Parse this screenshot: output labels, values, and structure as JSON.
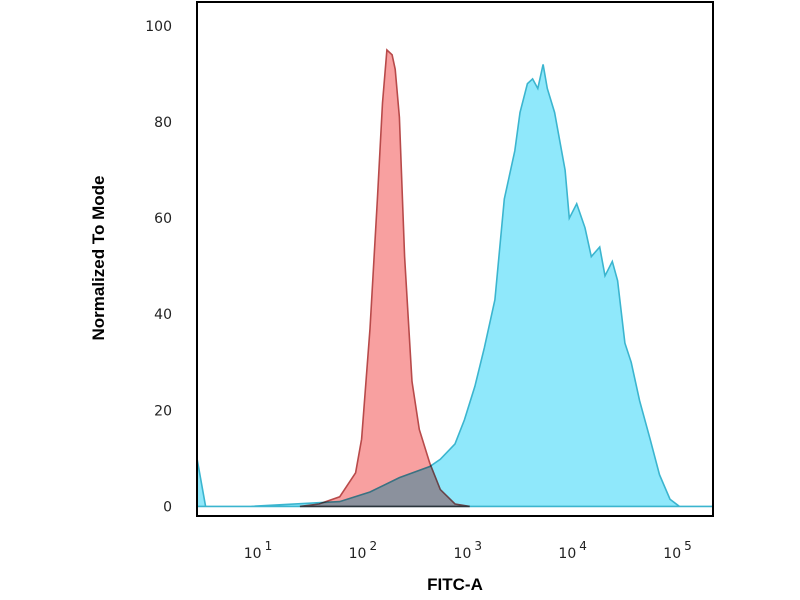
{
  "chart_data": {
    "type": "area",
    "title": "",
    "xlabel": "FITC-A",
    "ylabel": "Normalized To Mode",
    "xscale": "log",
    "xlim": [
      2.4,
      199526
    ],
    "ylim": [
      -2,
      105
    ],
    "grid": false,
    "xticks": [
      {
        "value": 10,
        "base": "10",
        "exp": "1"
      },
      {
        "value": 100,
        "base": "10",
        "exp": "2"
      },
      {
        "value": 1000,
        "base": "10",
        "exp": "3"
      },
      {
        "value": 10000,
        "base": "10",
        "exp": "4"
      },
      {
        "value": 100000,
        "base": "10",
        "exp": "5"
      }
    ],
    "yticks": [
      {
        "value": 0,
        "label": "0"
      },
      {
        "value": 20,
        "label": "20"
      },
      {
        "value": 40,
        "label": "40"
      },
      {
        "value": 60,
        "label": "60"
      },
      {
        "value": 80,
        "label": "80"
      },
      {
        "value": 100,
        "label": "100"
      }
    ],
    "series": [
      {
        "color_fill": "#8fe8fb",
        "color_line": "#3bb5cf",
        "x": [
          2.4,
          2.9,
          7.8,
          55,
          107,
          204,
          398,
          501,
          692,
          851,
          1072,
          1318,
          1660,
          2042,
          2570,
          2884,
          3388,
          3802,
          4266,
          4786,
          5248,
          6166,
          7762,
          8511,
          10000,
          12023,
          13804,
          16596,
          18621,
          21878,
          24547,
          28840,
          33113,
          39811,
          50119,
          61660,
          77625,
          95499,
          199526
        ],
        "y": [
          10,
          0,
          0,
          1,
          3,
          6,
          8.3,
          9.8,
          13,
          18,
          25,
          33,
          43,
          64,
          74,
          82,
          88,
          89,
          87,
          92,
          87,
          82,
          70,
          60,
          63,
          58,
          52,
          54,
          48,
          51,
          47,
          34,
          30,
          22,
          14,
          6.6,
          1.5,
          0,
          0
        ]
      },
      {
        "color_fill": "#f8a0a0",
        "color_line": "#b84a4a",
        "x": [
          23,
          35,
          55,
          78,
          89,
          107,
          126,
          141,
          155,
          174,
          186,
          204,
          229,
          269,
          316,
          398,
          501,
          692,
          955
        ],
        "y": [
          0,
          0.5,
          2,
          7,
          14,
          37,
          64,
          84,
          95,
          94,
          91,
          81,
          52,
          26,
          16,
          9,
          3.5,
          0.5,
          0
        ]
      }
    ]
  }
}
